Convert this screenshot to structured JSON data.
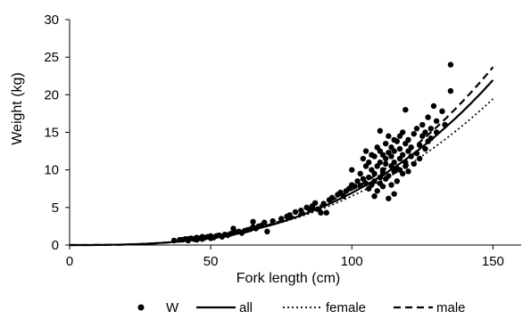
{
  "chart_data": {
    "type": "scatter",
    "xlabel": "Fork length (cm)",
    "ylabel": "Weight (kg)",
    "xlim": [
      0,
      160
    ],
    "ylim": [
      0,
      30
    ],
    "xticks": [
      "0",
      "50",
      "100",
      "150"
    ],
    "yticks": [
      "0",
      "5",
      "10",
      "15",
      "20",
      "25",
      "30"
    ],
    "grid": false,
    "legend_position": "bottom",
    "series": [
      {
        "name": "W",
        "kind": "points",
        "color": "#000000",
        "points": [
          [
            37,
            0.6
          ],
          [
            39,
            0.7
          ],
          [
            40,
            0.7
          ],
          [
            41,
            0.8
          ],
          [
            42,
            0.8
          ],
          [
            42,
            0.6
          ],
          [
            43,
            0.9
          ],
          [
            44,
            0.8
          ],
          [
            45,
            1.0
          ],
          [
            45,
            0.7
          ],
          [
            46,
            0.9
          ],
          [
            47,
            1.1
          ],
          [
            47,
            0.8
          ],
          [
            48,
            1.0
          ],
          [
            49,
            1.1
          ],
          [
            50,
            1.2
          ],
          [
            50,
            0.9
          ],
          [
            51,
            1.0
          ],
          [
            52,
            1.2
          ],
          [
            53,
            1.3
          ],
          [
            54,
            1.1
          ],
          [
            55,
            1.4
          ],
          [
            56,
            1.3
          ],
          [
            57,
            1.5
          ],
          [
            58,
            2.2
          ],
          [
            58,
            1.6
          ],
          [
            59,
            1.7
          ],
          [
            60,
            1.8
          ],
          [
            61,
            1.6
          ],
          [
            62,
            1.9
          ],
          [
            63,
            2.0
          ],
          [
            64,
            2.1
          ],
          [
            65,
            2.4
          ],
          [
            65,
            3.1
          ],
          [
            66,
            2.2
          ],
          [
            67,
            2.5
          ],
          [
            68,
            2.6
          ],
          [
            69,
            3.0
          ],
          [
            70,
            1.8
          ],
          [
            72,
            3.2
          ],
          [
            75,
            3.5
          ],
          [
            77,
            3.8
          ],
          [
            78,
            4.0
          ],
          [
            80,
            4.4
          ],
          [
            82,
            4.6
          ],
          [
            84,
            5.0
          ],
          [
            85,
            4.7
          ],
          [
            86,
            5.2
          ],
          [
            87,
            5.6
          ],
          [
            88,
            4.8
          ],
          [
            89,
            4.3
          ],
          [
            90,
            5.5
          ],
          [
            91,
            4.3
          ],
          [
            92,
            6.0
          ],
          [
            93,
            6.3
          ],
          [
            95,
            6.7
          ],
          [
            96,
            7.0
          ],
          [
            97,
            6.5
          ],
          [
            98,
            7.2
          ],
          [
            99,
            7.5
          ],
          [
            100,
            8.0
          ],
          [
            100,
            10.0
          ],
          [
            101,
            7.8
          ],
          [
            102,
            8.5
          ],
          [
            103,
            9.5
          ],
          [
            103,
            7.9
          ],
          [
            104,
            11.5
          ],
          [
            104,
            8.8
          ],
          [
            105,
            10.5
          ],
          [
            105,
            12.5
          ],
          [
            105,
            8.2
          ],
          [
            106,
            9.0
          ],
          [
            106,
            11.0
          ],
          [
            106,
            7.5
          ],
          [
            107,
            10.0
          ],
          [
            107,
            8.0
          ],
          [
            107,
            12.0
          ],
          [
            108,
            6.5
          ],
          [
            108,
            9.5
          ],
          [
            108,
            11.8
          ],
          [
            108,
            8.5
          ],
          [
            109,
            10.5
          ],
          [
            109,
            7.2
          ],
          [
            109,
            13.0
          ],
          [
            110,
            9.0
          ],
          [
            110,
            11.0
          ],
          [
            110,
            12.5
          ],
          [
            110,
            8.2
          ],
          [
            110,
            15.2
          ],
          [
            111,
            10.0
          ],
          [
            111,
            12.0
          ],
          [
            111,
            7.8
          ],
          [
            111,
            9.5
          ],
          [
            112,
            11.5
          ],
          [
            112,
            13.5
          ],
          [
            112,
            8.8
          ],
          [
            112,
            10.8
          ],
          [
            113,
            9.2
          ],
          [
            113,
            12.3
          ],
          [
            113,
            14.5
          ],
          [
            113,
            6.2
          ],
          [
            114,
            10.5
          ],
          [
            114,
            11.8
          ],
          [
            114,
            8.0
          ],
          [
            114,
            13.0
          ],
          [
            115,
            9.8
          ],
          [
            115,
            12.5
          ],
          [
            115,
            11.0
          ],
          [
            115,
            14.0
          ],
          [
            115,
            6.8
          ],
          [
            116,
            10.2
          ],
          [
            116,
            13.8
          ],
          [
            116,
            8.5
          ],
          [
            117,
            11.5
          ],
          [
            117,
            12.8
          ],
          [
            117,
            10.0
          ],
          [
            117,
            14.5
          ],
          [
            118,
            9.5
          ],
          [
            118,
            12.0
          ],
          [
            118,
            15.0
          ],
          [
            119,
            11.0
          ],
          [
            119,
            13.5
          ],
          [
            119,
            10.5
          ],
          [
            119,
            18.0
          ],
          [
            120,
            12.5
          ],
          [
            120,
            14.0
          ],
          [
            120,
            9.8
          ],
          [
            121,
            11.8
          ],
          [
            121,
            13.0
          ],
          [
            122,
            14.8
          ],
          [
            122,
            10.8
          ],
          [
            123,
            12.2
          ],
          [
            123,
            15.5
          ],
          [
            124,
            13.3
          ],
          [
            124,
            11.5
          ],
          [
            125,
            14.5
          ],
          [
            125,
            16.0
          ],
          [
            126,
            12.8
          ],
          [
            126,
            15.0
          ],
          [
            127,
            17.0
          ],
          [
            127,
            13.8
          ],
          [
            128,
            15.5
          ],
          [
            128,
            14.2
          ],
          [
            129,
            18.5
          ],
          [
            130,
            16.5
          ],
          [
            130,
            15.0
          ],
          [
            132,
            17.8
          ],
          [
            133,
            16.0
          ],
          [
            135,
            24.0
          ],
          [
            135,
            20.5
          ]
        ]
      },
      {
        "name": "all",
        "kind": "curve",
        "style": "solid",
        "color": "#000000",
        "a": 1.45e-05,
        "b": 2.84
      },
      {
        "name": "female",
        "kind": "curve",
        "style": "dotted",
        "color": "#000000",
        "a": 2.59e-05,
        "b": 2.7
      },
      {
        "name": "male",
        "kind": "curve",
        "style": "dashed",
        "color": "#000000",
        "a": 1.28e-05,
        "b": 2.88
      }
    ]
  }
}
